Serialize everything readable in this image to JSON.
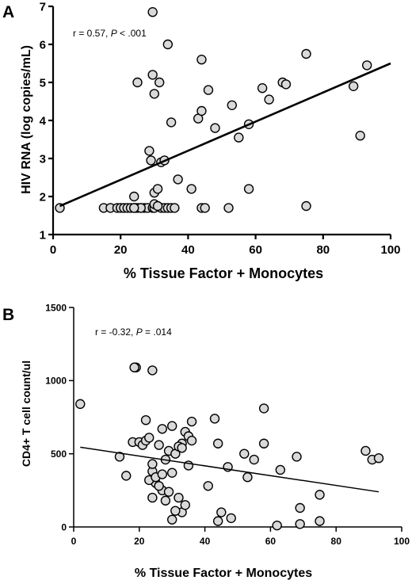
{
  "chart_data": [
    {
      "panel": "A",
      "type": "scatter",
      "annotation": {
        "prefix": "r = 0.57, ",
        "italic": "P",
        "suffix": " < .001"
      },
      "xlabel": "% Tissue Factor + Monocytes",
      "ylabel": "HIV RNA (log copies/mL)",
      "xlim": [
        0,
        100
      ],
      "ylim": [
        1,
        7
      ],
      "xticks": [
        0,
        20,
        40,
        60,
        80,
        100
      ],
      "yticks": [
        1,
        2,
        3,
        4,
        5,
        6,
        7
      ],
      "grid": false,
      "regression_line": {
        "x": [
          2,
          100
        ],
        "y": [
          1.75,
          5.5
        ]
      },
      "x": [
        2,
        15,
        17,
        19,
        20,
        21,
        22,
        23,
        24,
        24.5,
        25,
        26,
        27,
        28,
        29.5,
        30,
        32,
        33,
        34,
        35,
        36,
        24,
        26,
        30,
        31,
        44,
        45,
        52,
        75,
        24,
        29,
        30,
        31,
        32,
        33,
        35,
        28.5,
        37,
        41,
        43,
        44,
        48,
        53,
        55,
        58,
        58,
        25,
        29.5,
        30,
        31.5,
        34,
        44,
        46,
        62,
        64,
        68,
        69,
        75,
        89,
        91,
        93,
        29.5
      ],
      "y": [
        1.7,
        1.7,
        1.7,
        1.7,
        1.7,
        1.7,
        1.7,
        1.7,
        1.7,
        1.7,
        1.7,
        1.7,
        1.7,
        1.7,
        1.7,
        1.7,
        1.7,
        1.7,
        1.7,
        1.7,
        1.7,
        2.0,
        1.7,
        1.8,
        1.75,
        1.7,
        1.7,
        1.7,
        1.75,
        1.7,
        2.95,
        2.1,
        2.2,
        2.9,
        2.95,
        3.95,
        3.2,
        2.45,
        2.2,
        4.05,
        4.25,
        3.8,
        4.4,
        3.55,
        3.9,
        2.2,
        5.0,
        5.2,
        4.7,
        5.0,
        6.0,
        5.6,
        4.8,
        4.85,
        4.55,
        5.0,
        4.95,
        5.75,
        4.9,
        3.6,
        5.45,
        6.85
      ]
    },
    {
      "panel": "B",
      "type": "scatter",
      "annotation": {
        "prefix": "r = -0.32, ",
        "italic": "P",
        "suffix": " =  .014"
      },
      "xlabel": "% Tissue Factor + Monocytes",
      "ylabel": "CD4+ T cell count/ul",
      "xlim": [
        0,
        100
      ],
      "ylim": [
        0,
        1500
      ],
      "xticks": [
        0,
        20,
        40,
        60,
        80,
        100
      ],
      "yticks": [
        0,
        500,
        1000,
        1500
      ],
      "grid": false,
      "regression_line": {
        "x": [
          2,
          93
        ],
        "y": [
          545,
          240
        ]
      },
      "x": [
        2,
        14,
        16,
        18,
        19,
        20,
        21,
        22,
        22,
        23,
        24,
        24,
        25,
        26,
        27,
        27,
        28,
        29,
        30,
        30,
        31,
        32,
        33,
        33,
        34,
        34,
        35,
        36,
        23,
        24,
        25,
        26,
        27,
        28,
        29,
        30,
        31,
        32,
        33,
        35,
        36,
        18.5,
        24,
        41,
        43,
        44,
        44,
        45,
        47,
        48,
        52,
        53,
        55,
        58,
        58,
        63,
        62,
        68,
        69,
        69,
        75,
        75,
        89,
        91,
        93
      ],
      "y": [
        840,
        480,
        350,
        580,
        1090,
        580,
        560,
        590,
        730,
        610,
        380,
        1070,
        300,
        560,
        670,
        250,
        180,
        520,
        50,
        690,
        500,
        200,
        570,
        100,
        150,
        650,
        620,
        720,
        320,
        200,
        340,
        280,
        360,
        460,
        240,
        370,
        110,
        550,
        540,
        420,
        590,
        1090,
        430,
        280,
        740,
        40,
        570,
        100,
        410,
        60,
        500,
        340,
        460,
        570,
        810,
        390,
        10,
        480,
        130,
        20,
        220,
        40,
        520,
        460,
        470
      ]
    }
  ]
}
